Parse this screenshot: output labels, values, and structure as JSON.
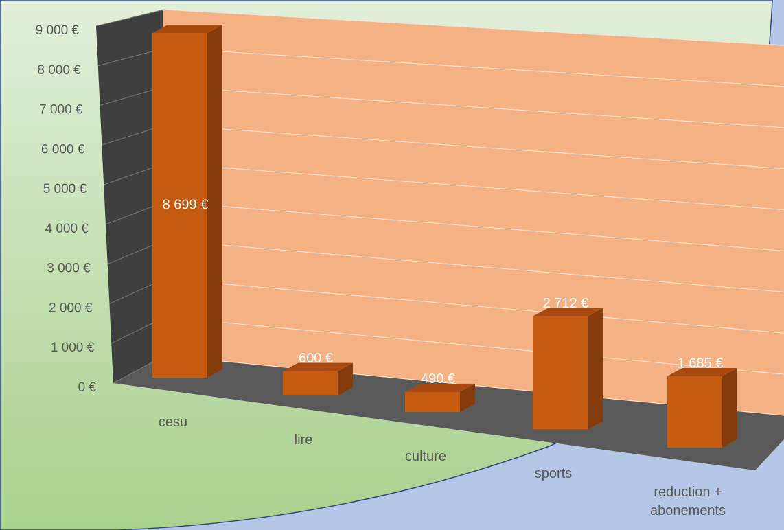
{
  "chart_data": {
    "type": "bar3d",
    "categories": [
      "cesu",
      "lire",
      "culture",
      "sports",
      "reduction + abonements"
    ],
    "values": [
      8699,
      600,
      490,
      2712,
      1685
    ],
    "value_labels": [
      "8 699 €",
      "600 €",
      "490 €",
      "2 712 €",
      "1 685 €"
    ],
    "color": "#c55a11",
    "ylim": [
      0,
      9000
    ],
    "yticks": [
      {
        "value": 0,
        "label": "0 €"
      },
      {
        "value": 1000,
        "label": "1 000 €"
      },
      {
        "value": 2000,
        "label": "2 000 €"
      },
      {
        "value": 3000,
        "label": "3 000 €"
      },
      {
        "value": 4000,
        "label": "4 000 €"
      },
      {
        "value": 5000,
        "label": "5 000 €"
      },
      {
        "value": 6000,
        "label": "6 000 €"
      },
      {
        "value": 7000,
        "label": "7 000 €"
      },
      {
        "value": 8000,
        "label": "8 000 €"
      },
      {
        "value": 9000,
        "label": "9 000 €"
      }
    ],
    "grid": true
  }
}
